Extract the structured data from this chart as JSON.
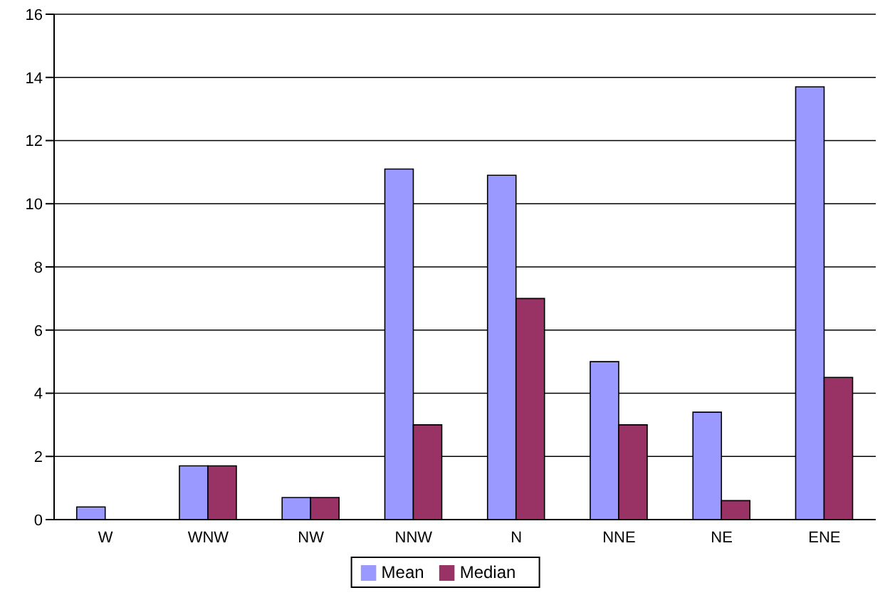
{
  "chart_data": {
    "type": "bar",
    "categories": [
      "W",
      "WNW",
      "NW",
      "NNW",
      "N",
      "NNE",
      "NE",
      "ENE"
    ],
    "series": [
      {
        "name": "Mean",
        "color": "#9999ff",
        "values": [
          0.4,
          1.7,
          0.7,
          11.1,
          10.9,
          5,
          3.4,
          13.7
        ]
      },
      {
        "name": "Median",
        "color": "#993366",
        "values": [
          0,
          1.7,
          0.7,
          3,
          7,
          3,
          0.6,
          4.5
        ]
      }
    ],
    "ylim": [
      0,
      16
    ],
    "yticks": [
      0,
      2,
      4,
      6,
      8,
      10,
      12,
      14,
      16
    ],
    "grid": "y",
    "legend": "bottom"
  }
}
